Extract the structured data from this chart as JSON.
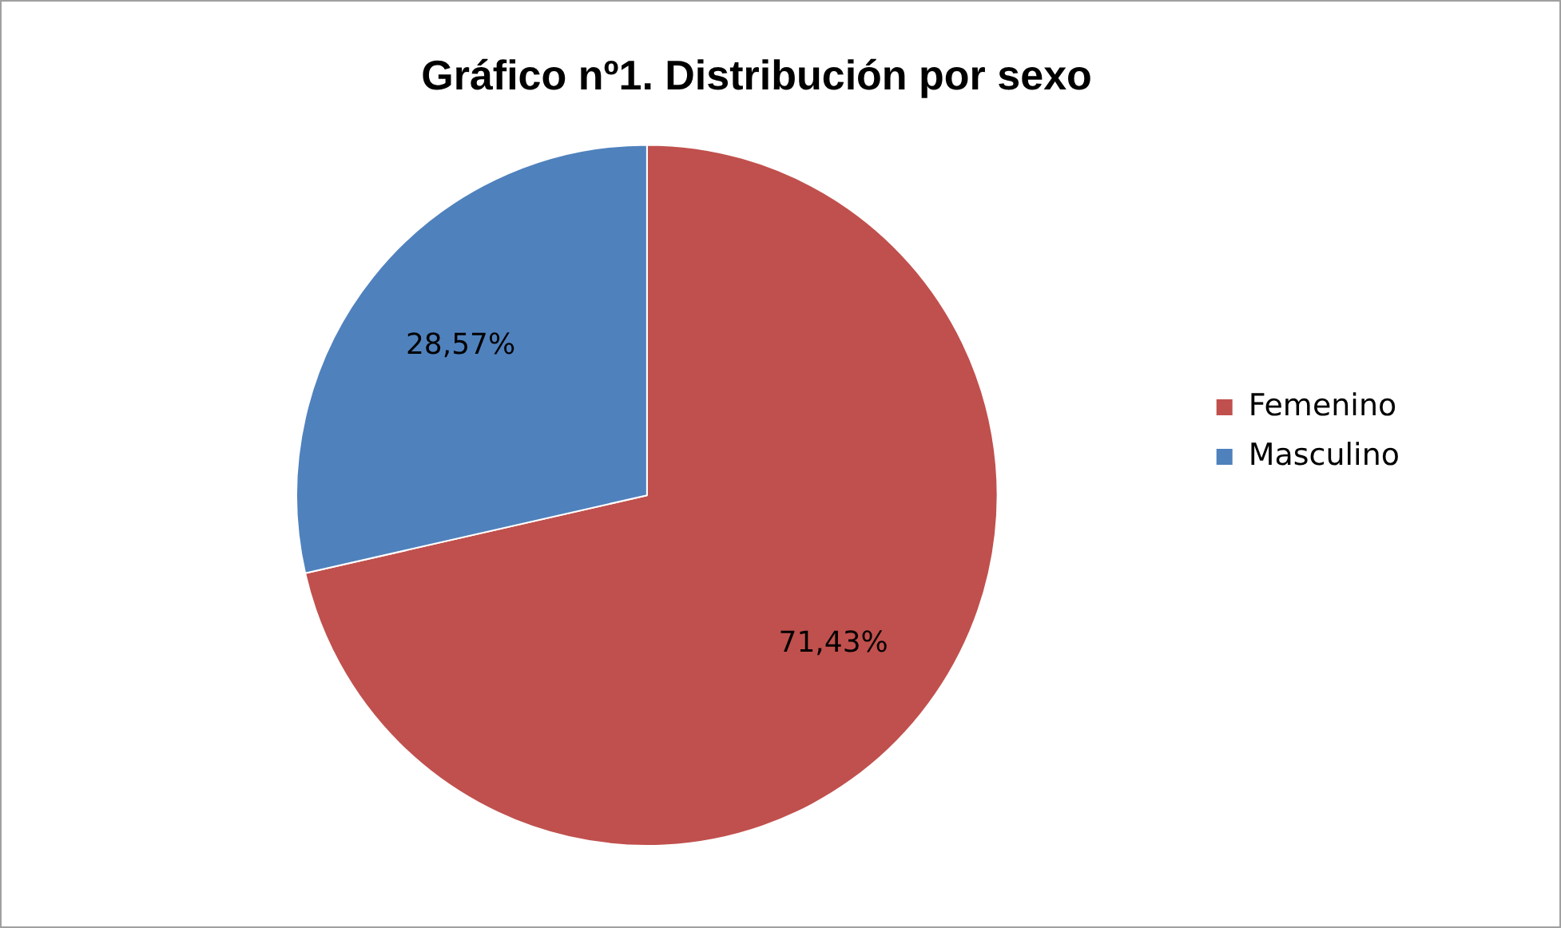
{
  "chart_data": {
    "type": "pie",
    "title": "Gráfico nº1. Distribución por sexo",
    "categories": [
      "Femenino",
      "Masculino"
    ],
    "values": [
      71.43,
      28.57
    ],
    "colors": [
      "#c0504d",
      "#4f81bd"
    ],
    "value_labels": [
      "71,43%",
      "28,57%"
    ],
    "legend": "right"
  }
}
